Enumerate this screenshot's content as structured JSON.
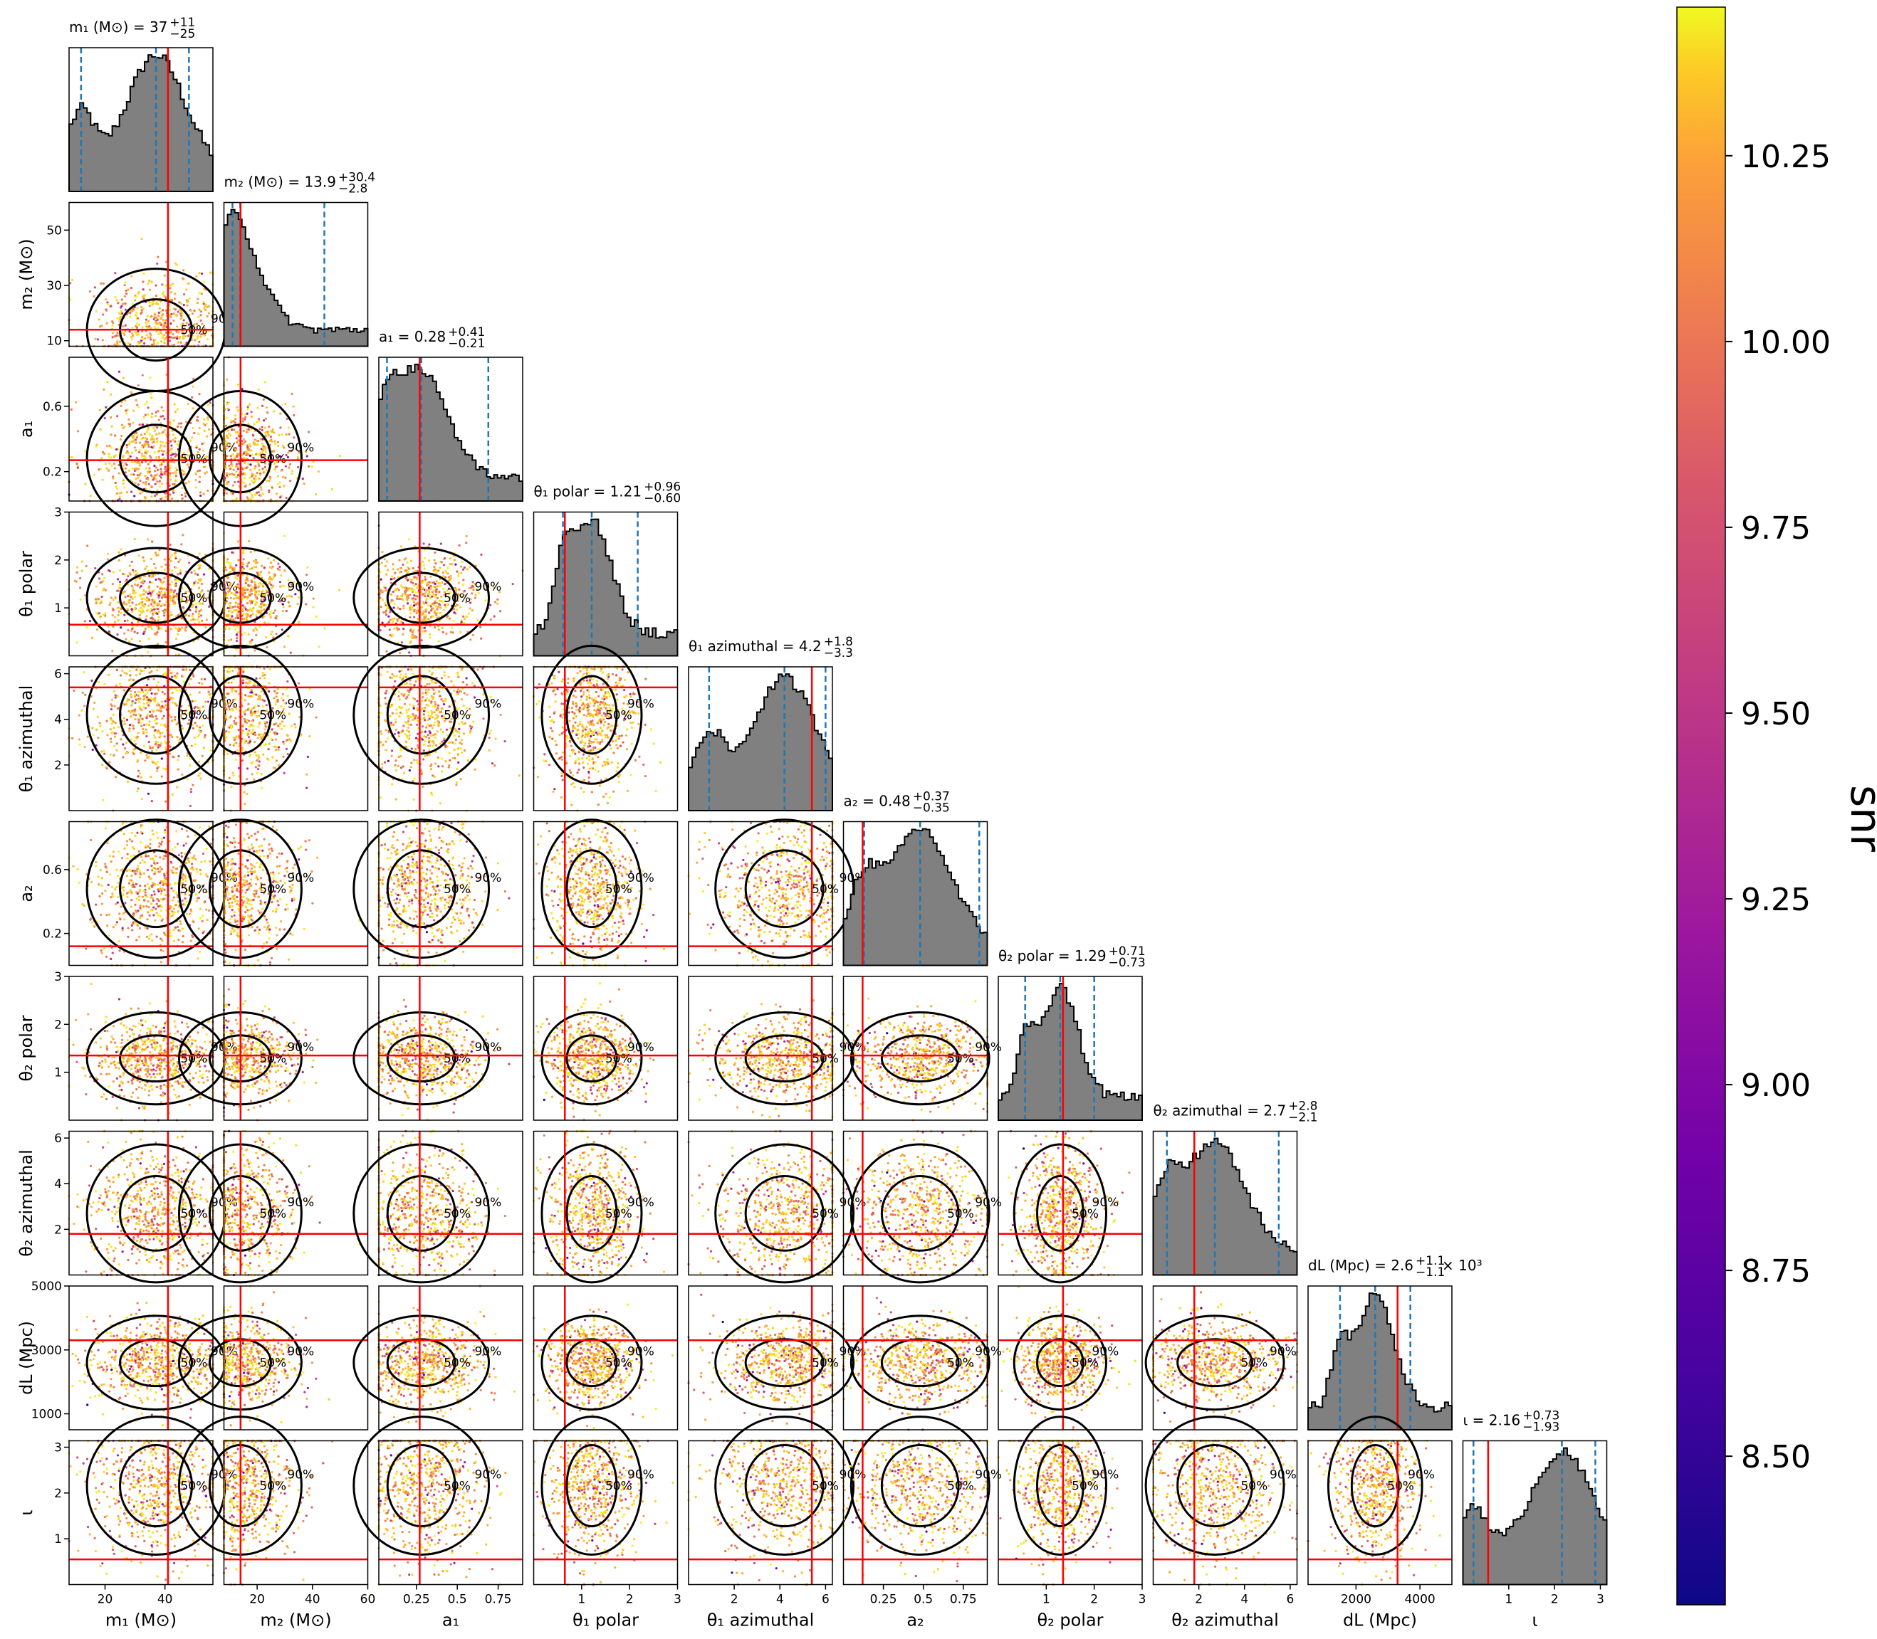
{
  "chart_data": {
    "type": "scatter",
    "subtype": "corner-plot",
    "parameters": [
      {
        "key": "m1",
        "label": "m₁ (M⊙)",
        "title": "m₁ (M⊙) = 37",
        "median": 37,
        "upper_err": "+11",
        "lower_err": "−25",
        "range": [
          8,
          56
        ],
        "ticks": [
          20,
          40
        ],
        "injection": 41,
        "quantiles": [
          12,
          37,
          48
        ]
      },
      {
        "key": "m2",
        "label": "m₂ (M⊙)",
        "title": "m₂ (M⊙) = 13.9",
        "median": 13.9,
        "upper_err": "+30.4",
        "lower_err": "−2.8",
        "range": [
          8,
          60
        ],
        "ticks": [
          20,
          40,
          60
        ],
        "injection": 14,
        "quantiles": [
          11.1,
          13.9,
          44.3
        ]
      },
      {
        "key": "a1",
        "label": "a₁",
        "title": "a₁ = 0.28",
        "median": 0.28,
        "upper_err": "+0.41",
        "lower_err": "−0.21",
        "range": [
          0.02,
          0.9
        ],
        "ticks": [
          0.25,
          0.5,
          0.75
        ],
        "injection": 0.27,
        "quantiles": [
          0.07,
          0.28,
          0.69
        ]
      },
      {
        "key": "theta1_polar",
        "label": "θ₁ polar",
        "title": "θ₁ polar = 1.21",
        "median": 1.21,
        "upper_err": "+0.96",
        "lower_err": "−0.60",
        "range": [
          0,
          3
        ],
        "ticks": [
          1,
          2,
          3
        ],
        "injection": 0.65,
        "quantiles": [
          0.61,
          1.21,
          2.17
        ]
      },
      {
        "key": "theta1_azimuthal",
        "label": "θ₁ azimuthal",
        "title": "θ₁ azimuthal = 4.2",
        "median": 4.2,
        "upper_err": "+1.8",
        "lower_err": "−3.3",
        "range": [
          0,
          6.3
        ],
        "ticks": [
          2,
          4,
          6
        ],
        "injection": 5.4,
        "quantiles": [
          0.9,
          4.2,
          6.0
        ]
      },
      {
        "key": "a2",
        "label": "a₂",
        "title": "a₂ = 0.48",
        "median": 0.48,
        "upper_err": "+0.37",
        "lower_err": "−0.35",
        "range": [
          0,
          0.9
        ],
        "ticks": [
          0.25,
          0.5,
          0.75
        ],
        "injection": 0.12,
        "quantiles": [
          0.13,
          0.48,
          0.85
        ]
      },
      {
        "key": "theta2_polar",
        "label": "θ₂ polar",
        "title": "θ₂ polar = 1.29",
        "median": 1.29,
        "upper_err": "+0.71",
        "lower_err": "−0.73",
        "range": [
          0,
          3
        ],
        "ticks": [
          1,
          2,
          3
        ],
        "injection": 1.35,
        "quantiles": [
          0.56,
          1.29,
          2.0
        ]
      },
      {
        "key": "theta2_azimuthal",
        "label": "θ₂ azimuthal",
        "title": "θ₂ azimuthal = 2.7",
        "median": 2.7,
        "upper_err": "+2.8",
        "lower_err": "−2.1",
        "range": [
          0,
          6.3
        ],
        "ticks": [
          2,
          4,
          6
        ],
        "injection": 1.8,
        "quantiles": [
          0.6,
          2.7,
          5.5
        ]
      },
      {
        "key": "dL",
        "label": "dL (Mpc)",
        "title": "dL (Mpc) = 2.6",
        "median": 2600,
        "upper_err": "+1.1",
        "lower_err": "−1.1",
        "title_suffix": "× 10³",
        "range": [
          500,
          5000
        ],
        "ticks": [
          2000,
          4000
        ],
        "tick_labels_y": [
          1000,
          3000,
          5000
        ],
        "injection": 3300,
        "quantiles": [
          1500,
          2600,
          3700
        ]
      },
      {
        "key": "iota",
        "label": "ι",
        "title": "ι = 2.16",
        "median": 2.16,
        "upper_err": "+0.73",
        "lower_err": "−1.93",
        "range": [
          0,
          3.14
        ],
        "ticks": [
          1,
          2,
          3
        ],
        "injection": 0.55,
        "quantiles": [
          0.23,
          2.16,
          2.89
        ]
      }
    ],
    "y_tick_overrides": {
      "m2": [
        10,
        30,
        50
      ],
      "a1": [
        0.2,
        0.6
      ],
      "a2": [
        0.2,
        0.6
      ],
      "dL": [
        1000,
        3000,
        5000
      ]
    },
    "contour_levels": [
      "50%",
      "90%"
    ],
    "colorbar": {
      "label": "snr",
      "range": [
        8.3,
        10.45
      ],
      "ticks": [
        "8.50",
        "8.75",
        "9.00",
        "9.25",
        "9.50",
        "9.75",
        "10.00",
        "10.25"
      ],
      "colormap": "plasma"
    },
    "histogram_color": "#808080",
    "injection_color": "#ff0000",
    "quantile_color": "#1f77b4"
  }
}
